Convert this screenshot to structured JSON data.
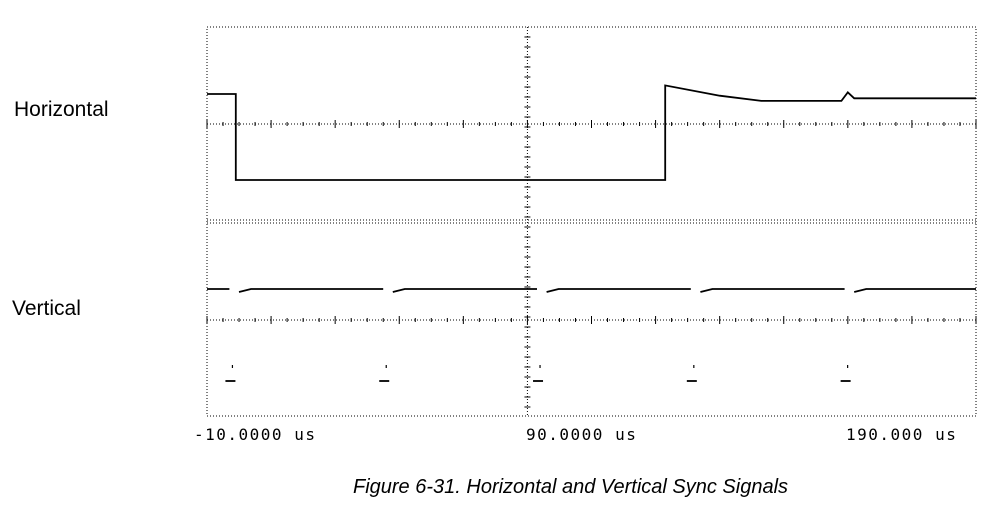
{
  "chart_data": {
    "type": "line",
    "title": "",
    "xlabel": "",
    "ylabel": "",
    "x_tick_labels": [
      "-10.0000 us",
      "90.0000 us",
      "190.000 us"
    ],
    "x_tick_values_us": [
      -10,
      90,
      190
    ],
    "xlim_us": [
      -10,
      230
    ],
    "grid": "dotted",
    "series": [
      {
        "name": "Horizontal",
        "levels": {
          "high": 1,
          "low": 0
        },
        "points": [
          [
            -10,
            1
          ],
          [
            -1,
            1
          ],
          [
            -1,
            0
          ],
          [
            40,
            0
          ],
          [
            60,
            0
          ],
          [
            80,
            0
          ],
          [
            100,
            0
          ],
          [
            133,
            0
          ],
          [
            133,
            1.1
          ],
          [
            150,
            0.98
          ],
          [
            163,
            0.92
          ],
          [
            188,
            0.92
          ],
          [
            190,
            1.02
          ],
          [
            192,
            0.95
          ],
          [
            230,
            0.95
          ]
        ]
      },
      {
        "name": "Vertical",
        "levels": {
          "high": 1,
          "low": 0
        },
        "pulses_at_us": [
          -3,
          45,
          93,
          141,
          189
        ],
        "pulse_width_us": 3
      }
    ]
  },
  "labels": {
    "horizontal": "Horizontal",
    "vertical": "Vertical"
  },
  "caption": "Figure 6-31.  Horizontal and Vertical Sync Signals"
}
